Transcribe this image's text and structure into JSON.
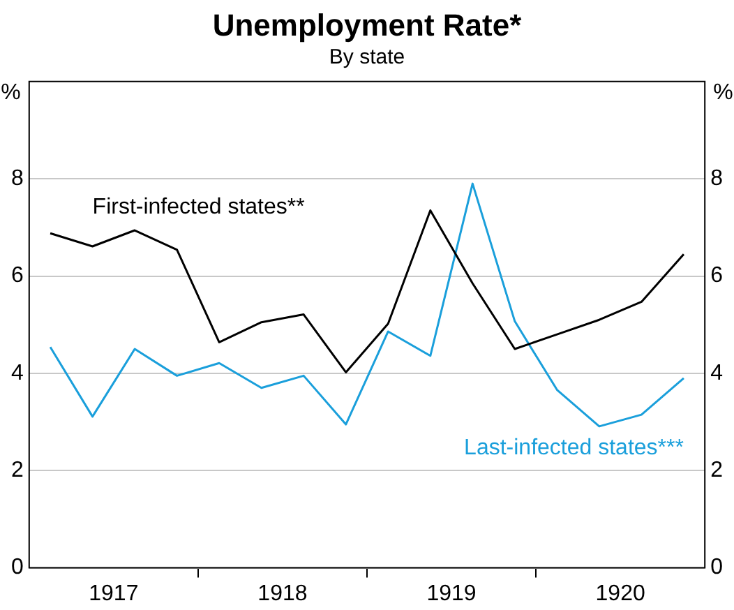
{
  "chart_data": {
    "type": "line",
    "title": "Unemployment Rate*",
    "subtitle": "By state",
    "ylabel": "%",
    "y2label": "%",
    "x": [
      1917.125,
      1917.375,
      1917.625,
      1917.875,
      1918.125,
      1918.375,
      1918.625,
      1918.875,
      1919.125,
      1919.375,
      1919.625,
      1919.875,
      1920.125,
      1920.375,
      1920.625,
      1920.875
    ],
    "series": [
      {
        "name": "First-infected states**",
        "color": "#000000",
        "values": [
          6.88,
          6.61,
          6.94,
          6.54,
          4.64,
          5.05,
          5.21,
          4.02,
          5.02,
          7.35,
          5.85,
          4.5,
          4.8,
          5.1,
          5.47,
          6.45
        ]
      },
      {
        "name": "Last-infected states***",
        "color": "#1a9fdb",
        "values": [
          4.54,
          3.11,
          4.5,
          3.95,
          4.21,
          3.7,
          3.95,
          2.95,
          4.86,
          4.36,
          7.9,
          5.07,
          3.66,
          2.91,
          3.15,
          3.9
        ]
      }
    ],
    "xlim": [
      1917,
      1921
    ],
    "xticks": [
      {
        "value": 1917.5,
        "label": "1917"
      },
      {
        "value": 1918,
        "label": null
      },
      {
        "value": 1918.5,
        "label": "1918"
      },
      {
        "value": 1919,
        "label": null
      },
      {
        "value": 1919.5,
        "label": "1919"
      },
      {
        "value": 1920,
        "label": null
      },
      {
        "value": 1920.5,
        "label": "1920"
      }
    ],
    "ylim": [
      0,
      10
    ],
    "yticks": [
      0,
      2,
      4,
      6,
      8
    ],
    "y2lim": [
      0,
      10
    ],
    "y2ticks": [
      0,
      2,
      4,
      6,
      8
    ],
    "grid": "y",
    "marker": "none",
    "line_style": "solid"
  }
}
